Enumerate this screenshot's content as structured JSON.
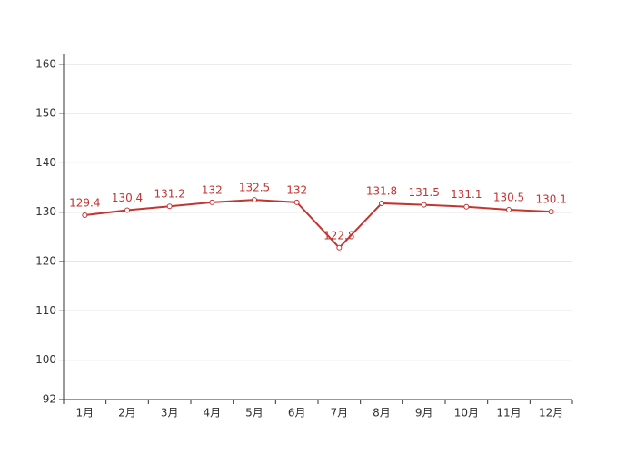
{
  "chart_data": {
    "type": "line",
    "categories": [
      "1月",
      "2月",
      "3月",
      "4月",
      "5月",
      "6月",
      "7月",
      "8月",
      "9月",
      "10月",
      "11月",
      "12月"
    ],
    "series": [
      {
        "color": "#c23531",
        "values": [
          129.4,
          130.4,
          131.2,
          132,
          132.5,
          132,
          122.8,
          131.8,
          131.5,
          131.1,
          130.5,
          130.1
        ]
      }
    ],
    "ylim": [
      92,
      162
    ],
    "yticks": [
      92,
      100,
      110,
      120,
      130,
      140,
      150,
      160
    ],
    "grid": true
  }
}
